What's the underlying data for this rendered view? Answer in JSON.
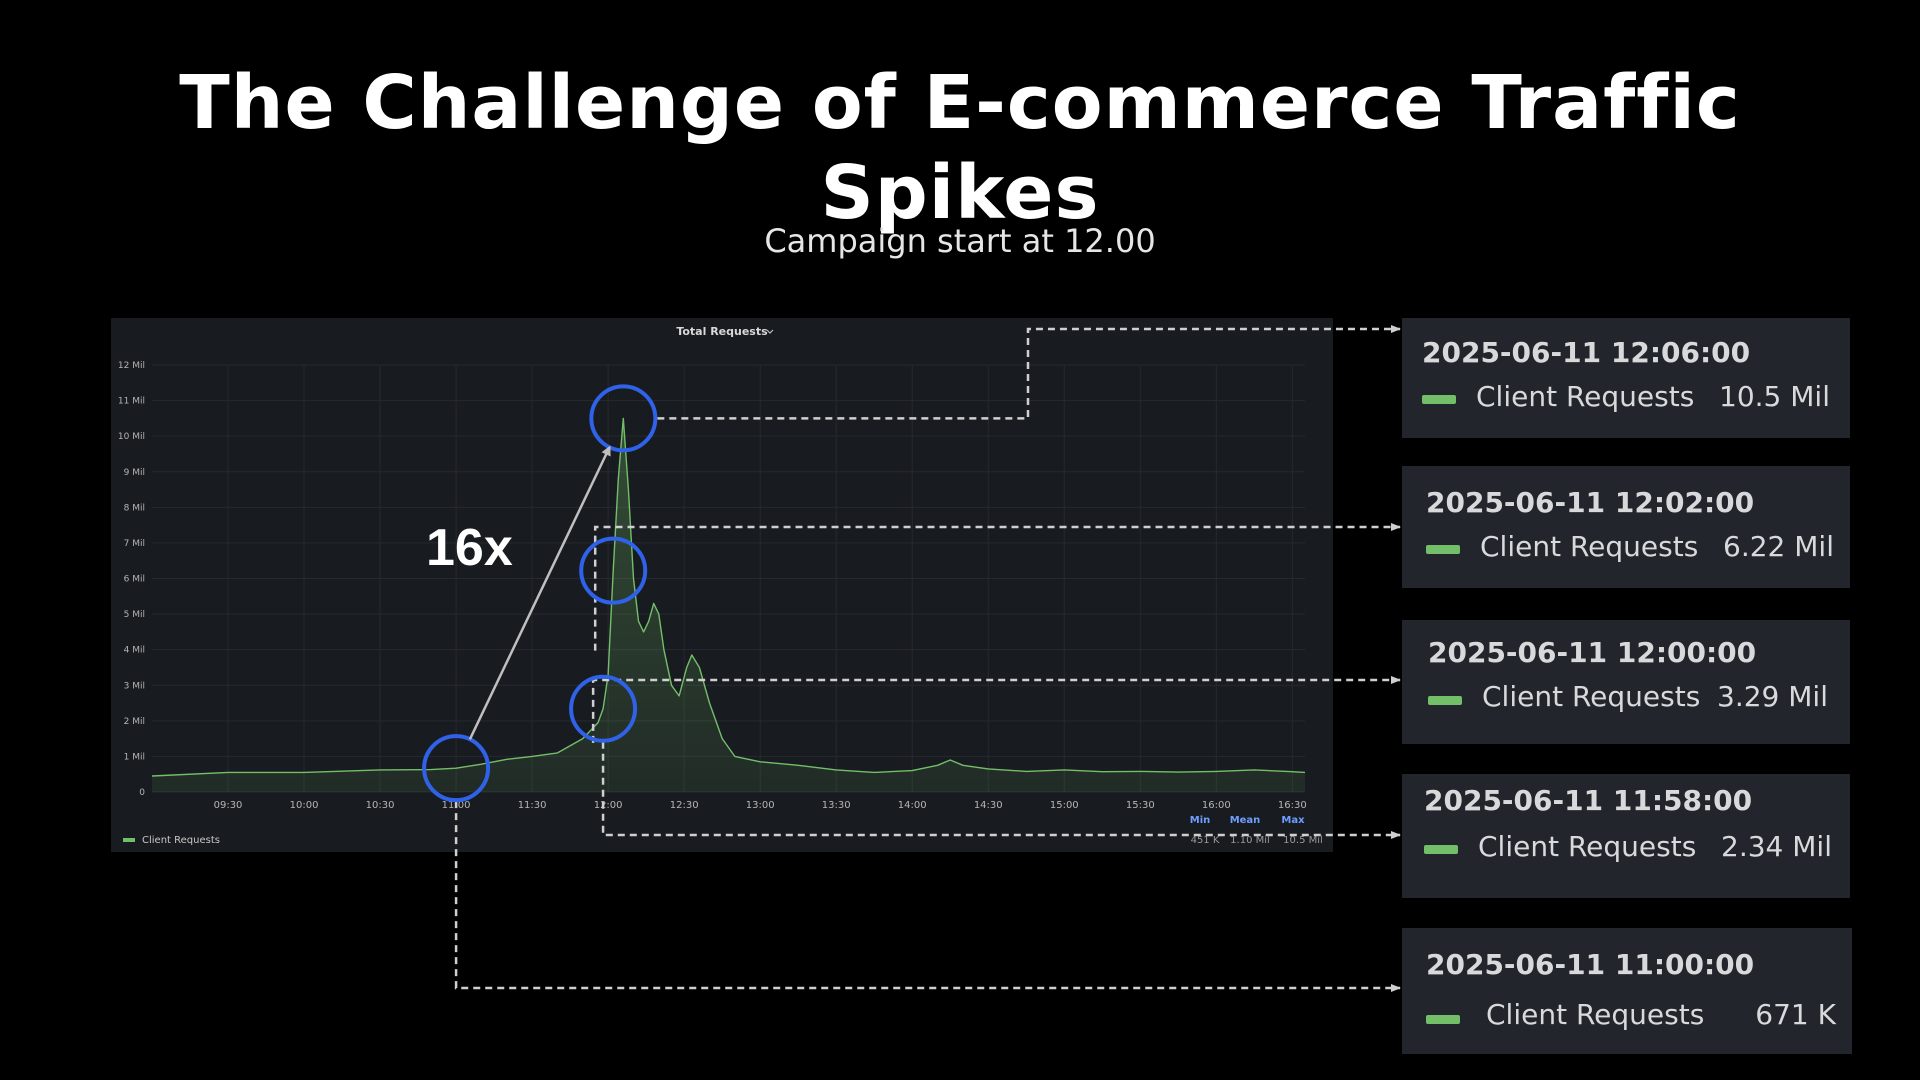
{
  "slide": {
    "title": "The Challenge of E-commerce Traffic Spikes",
    "subtitle": "Campaign start at 12.00",
    "annotation": "16x"
  },
  "colors": {
    "background": "#000000",
    "panel": "#181b1f",
    "series": "#73bf69",
    "highlight_circle": "#2f62e8",
    "tooltip_bg": "#22252b"
  },
  "chart_data": {
    "type": "area",
    "title": "Total Requests",
    "title_icon": "chevron-down-icon",
    "y_ticks": [
      "0",
      "1 Mil",
      "2 Mil",
      "3 Mil",
      "4 Mil",
      "5 Mil",
      "6 Mil",
      "7 Mil",
      "8 Mil",
      "9 Mil",
      "10 Mil",
      "11 Mil",
      "12 Mil"
    ],
    "ylim": [
      0,
      12
    ],
    "y_unit": "Mil",
    "x_ticks": [
      "09:30",
      "10:00",
      "10:30",
      "11:00",
      "11:30",
      "12:00",
      "12:30",
      "13:00",
      "13:30",
      "14:00",
      "14:30",
      "15:00",
      "15:30",
      "16:00",
      "16:30"
    ],
    "xlim": [
      "09:00",
      "16:35"
    ],
    "grid": true,
    "series": [
      {
        "name": "Client Requests",
        "color": "#73bf69",
        "points": [
          [
            "09:00",
            0.45
          ],
          [
            "09:30",
            0.55
          ],
          [
            "10:00",
            0.55
          ],
          [
            "10:30",
            0.62
          ],
          [
            "10:50",
            0.63
          ],
          [
            "11:00",
            0.67
          ],
          [
            "11:10",
            0.78
          ],
          [
            "11:20",
            0.92
          ],
          [
            "11:30",
            1.0
          ],
          [
            "11:40",
            1.1
          ],
          [
            "11:50",
            1.5
          ],
          [
            "11:56",
            1.95
          ],
          [
            "11:58",
            2.34
          ],
          [
            "12:00",
            3.29
          ],
          [
            "12:02",
            6.22
          ],
          [
            "12:04",
            8.8
          ],
          [
            "12:06",
            10.5
          ],
          [
            "12:08",
            8.5
          ],
          [
            "12:10",
            6.0
          ],
          [
            "12:12",
            4.8
          ],
          [
            "12:14",
            4.5
          ],
          [
            "12:16",
            4.8
          ],
          [
            "12:18",
            5.3
          ],
          [
            "12:20",
            5.0
          ],
          [
            "12:22",
            4.0
          ],
          [
            "12:25",
            3.0
          ],
          [
            "12:28",
            2.7
          ],
          [
            "12:31",
            3.5
          ],
          [
            "12:33",
            3.85
          ],
          [
            "12:36",
            3.5
          ],
          [
            "12:40",
            2.5
          ],
          [
            "12:45",
            1.5
          ],
          [
            "12:50",
            1.0
          ],
          [
            "13:00",
            0.85
          ],
          [
            "13:15",
            0.75
          ],
          [
            "13:30",
            0.62
          ],
          [
            "13:45",
            0.55
          ],
          [
            "14:00",
            0.6
          ],
          [
            "14:10",
            0.75
          ],
          [
            "14:15",
            0.9
          ],
          [
            "14:20",
            0.75
          ],
          [
            "14:30",
            0.65
          ],
          [
            "14:45",
            0.58
          ],
          [
            "15:00",
            0.62
          ],
          [
            "15:15",
            0.57
          ],
          [
            "15:30",
            0.58
          ],
          [
            "15:45",
            0.56
          ],
          [
            "16:00",
            0.58
          ],
          [
            "16:15",
            0.62
          ],
          [
            "16:30",
            0.57
          ],
          [
            "16:35",
            0.55
          ]
        ]
      }
    ],
    "legend": {
      "placement": "bottom-left",
      "series_name": "Client Requests",
      "stats_headers": [
        "Min",
        "Mean",
        "Max"
      ],
      "stats_values": [
        "451 K",
        "1.10 Mil",
        "10.5 Mil"
      ]
    },
    "highlights": [
      "11:00",
      "11:58",
      "12:02",
      "12:06"
    ],
    "arrow": {
      "from": "11:00",
      "to": "12:06",
      "label": "16x"
    },
    "tooltips": [
      {
        "time": "2025-06-11 12:06:00",
        "series": "Client Requests",
        "value": "10.5 Mil",
        "at": "12:06"
      },
      {
        "time": "2025-06-11 12:02:00",
        "series": "Client Requests",
        "value": "6.22 Mil",
        "at": "12:02"
      },
      {
        "time": "2025-06-11 12:00:00",
        "series": "Client Requests",
        "value": "3.29 Mil",
        "at": "12:00"
      },
      {
        "time": "2025-06-11 11:58:00",
        "series": "Client Requests",
        "value": "2.34 Mil",
        "at": "11:58"
      },
      {
        "time": "2025-06-11 11:00:00",
        "series": "Client Requests",
        "value": "671 K",
        "at": "11:00"
      }
    ]
  }
}
